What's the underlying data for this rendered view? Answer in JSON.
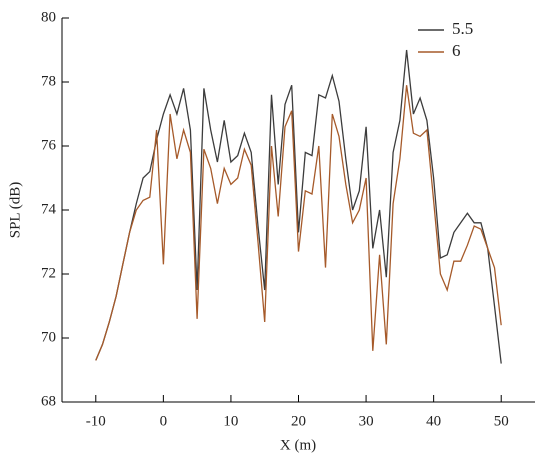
{
  "chart_data": {
    "type": "line",
    "x_label": "X (m)",
    "y_label": "SPL (dB)",
    "x": [
      -10,
      -9,
      -8,
      -7,
      -6,
      -5,
      -4,
      -3,
      -2,
      -1,
      0,
      1,
      2,
      3,
      4,
      5,
      6,
      7,
      8,
      9,
      10,
      11,
      12,
      13,
      14,
      15,
      16,
      17,
      18,
      19,
      20,
      21,
      22,
      23,
      24,
      25,
      26,
      27,
      28,
      29,
      30,
      31,
      32,
      33,
      34,
      35,
      36,
      37,
      38,
      39,
      40,
      41,
      42,
      43,
      44,
      45,
      46,
      47,
      48,
      49,
      50
    ],
    "series": [
      {
        "name": "5.5",
        "color": "#3c3c3c",
        "values": [
          69.3,
          69.8,
          70.5,
          71.3,
          72.3,
          73.3,
          74.2,
          75.0,
          75.2,
          76.2,
          77.0,
          77.6,
          77.0,
          77.8,
          76.5,
          71.5,
          77.8,
          76.5,
          75.5,
          76.8,
          75.5,
          75.7,
          76.4,
          75.8,
          73.5,
          71.5,
          77.6,
          74.8,
          77.3,
          77.9,
          73.3,
          75.8,
          75.7,
          77.6,
          77.5,
          78.2,
          77.4,
          75.6,
          74.0,
          74.6,
          76.6,
          72.8,
          74.0,
          71.9,
          75.8,
          76.8,
          79.0,
          77.0,
          77.5,
          76.8,
          75.0,
          72.5,
          72.6,
          73.3,
          73.6,
          73.9,
          73.6,
          73.6,
          72.8,
          71.0,
          69.2
        ]
      },
      {
        "name": "6",
        "color": "#a65a2a",
        "values": [
          69.3,
          69.8,
          70.5,
          71.3,
          72.3,
          73.3,
          74.0,
          74.3,
          74.4,
          76.5,
          72.3,
          77.0,
          75.6,
          76.5,
          75.8,
          70.6,
          75.9,
          75.3,
          74.2,
          75.3,
          74.8,
          75.0,
          75.9,
          75.4,
          73.0,
          70.5,
          76.0,
          73.8,
          76.6,
          77.1,
          72.7,
          74.6,
          74.5,
          76.0,
          72.2,
          77.0,
          76.3,
          74.8,
          73.6,
          74.0,
          75.0,
          69.6,
          72.6,
          69.8,
          74.2,
          75.6,
          77.9,
          76.4,
          76.3,
          76.5,
          74.3,
          72.0,
          71.5,
          72.4,
          72.4,
          72.9,
          73.5,
          73.4,
          72.8,
          72.2,
          70.4
        ]
      }
    ],
    "xlim": [
      -15,
      55
    ],
    "ylim": [
      68,
      80
    ],
    "xticks": [
      -10,
      0,
      10,
      20,
      30,
      40,
      50
    ],
    "yticks": [
      68,
      70,
      72,
      74,
      76,
      78,
      80
    ],
    "legend": "upper right"
  }
}
